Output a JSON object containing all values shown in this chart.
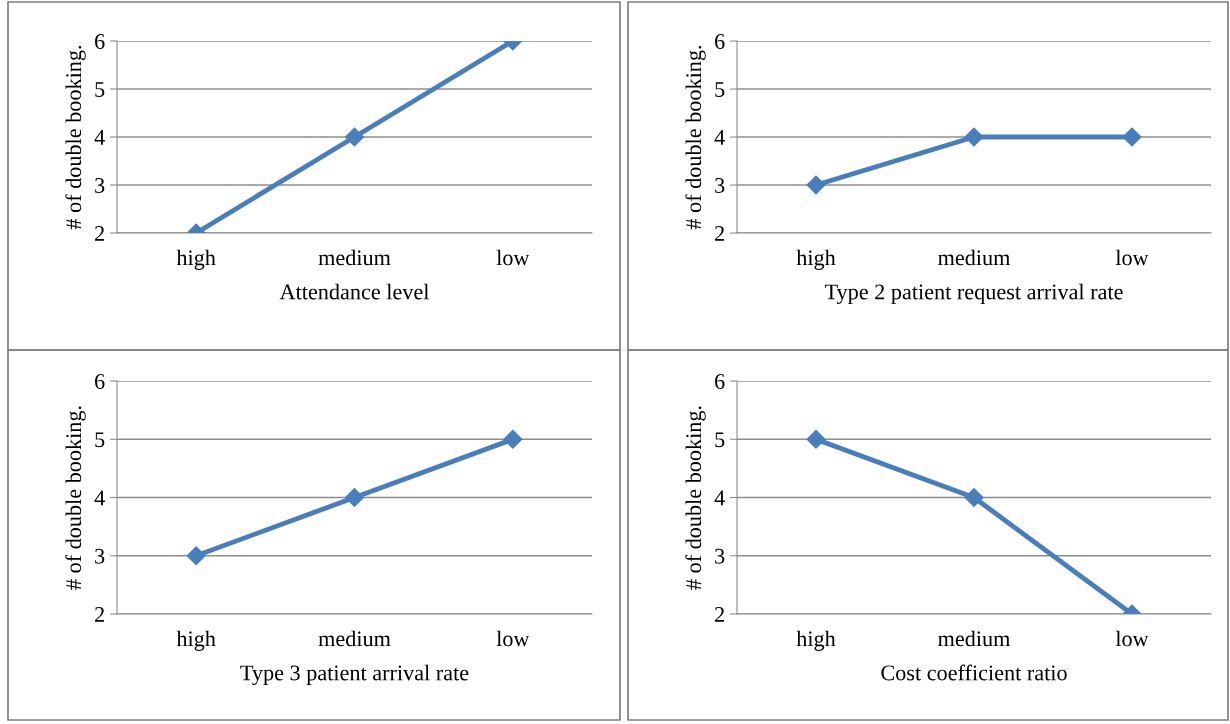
{
  "chart_data": [
    {
      "type": "line",
      "categories": [
        "high",
        "medium",
        "low"
      ],
      "values": [
        2,
        4,
        6
      ],
      "color": "#4a7ebb",
      "xlabel": "Attendance level",
      "ylabel": "# of double booking.",
      "ylim": [
        2,
        6
      ],
      "yticks": [
        2,
        3,
        4,
        5,
        6
      ],
      "grid": "y",
      "marker": "diamond",
      "line_style": "solid"
    },
    {
      "type": "line",
      "categories": [
        "high",
        "medium",
        "low"
      ],
      "values": [
        3,
        4,
        4
      ],
      "color": "#4a7ebb",
      "xlabel": "Type 2 patient request arrival rate",
      "ylabel": "# of double booking.",
      "ylim": [
        2,
        6
      ],
      "yticks": [
        2,
        3,
        4,
        5,
        6
      ],
      "grid": "y",
      "marker": "diamond",
      "line_style": "solid"
    },
    {
      "type": "line",
      "categories": [
        "high",
        "medium",
        "low"
      ],
      "values": [
        3,
        4,
        5
      ],
      "color": "#4a7ebb",
      "xlabel": "Type 3 patient arrival rate",
      "ylabel": "# of double booking.",
      "ylim": [
        2,
        6
      ],
      "yticks": [
        2,
        3,
        4,
        5,
        6
      ],
      "grid": "y",
      "marker": "diamond",
      "line_style": "solid"
    },
    {
      "type": "line",
      "categories": [
        "high",
        "medium",
        "low"
      ],
      "values": [
        5,
        4,
        2
      ],
      "color": "#4a7ebb",
      "xlabel": "Cost coefficient ratio",
      "ylabel": "# of double booking.",
      "ylim": [
        2,
        6
      ],
      "yticks": [
        2,
        3,
        4,
        5,
        6
      ],
      "grid": "y",
      "marker": "diamond",
      "line_style": "solid"
    }
  ]
}
